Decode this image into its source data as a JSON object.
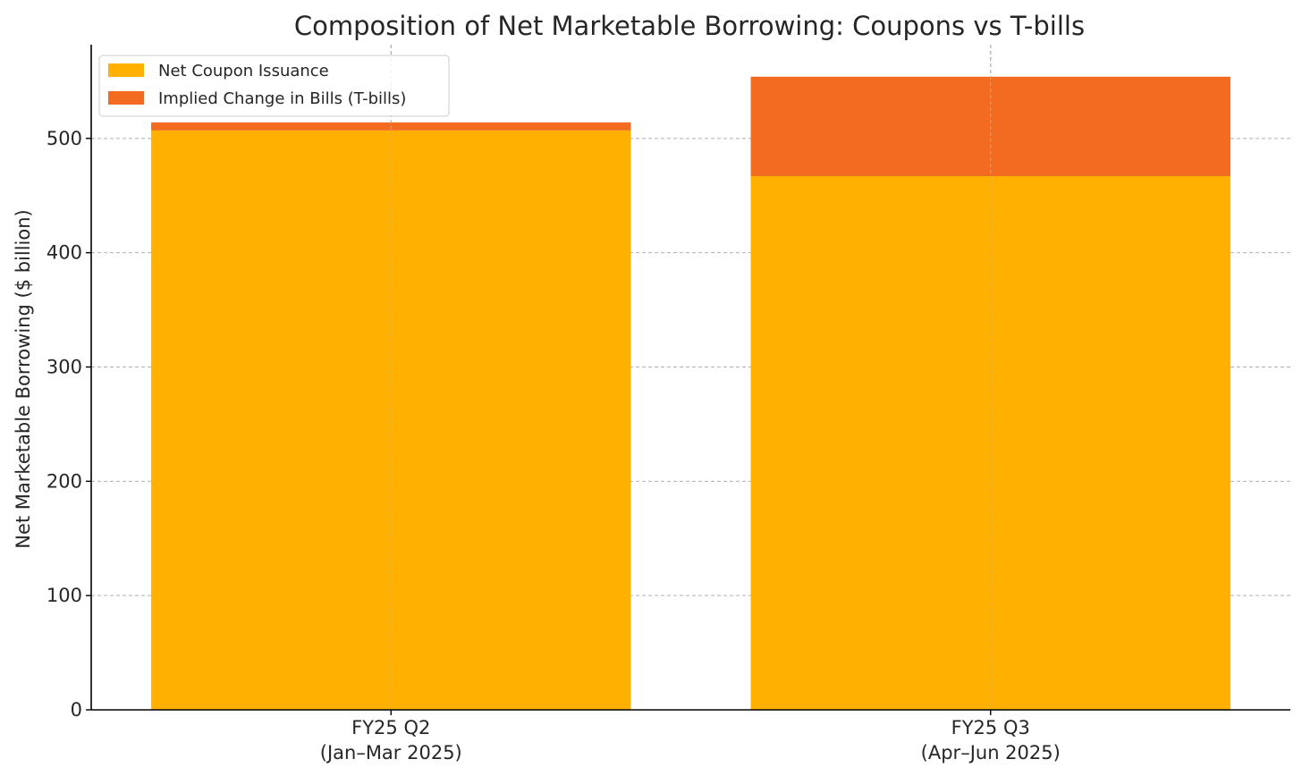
{
  "chart_data": {
    "type": "bar",
    "stacked": true,
    "title": "Composition of Net Marketable Borrowing: Coupons vs T-bills",
    "xlabel": "",
    "ylabel": "Net Marketable Borrowing ($ billion)",
    "ylim": [
      0,
      582
    ],
    "yticks": [
      0,
      100,
      200,
      300,
      400,
      500
    ],
    "categories": [
      [
        "FY25 Q2",
        "(Jan–Mar 2025)"
      ],
      [
        "FY25 Q3",
        "(Apr–Jun 2025)"
      ]
    ],
    "series": [
      {
        "name": "Net Coupon Issuance",
        "color": "#FFB000",
        "values": [
          507,
          467
        ]
      },
      {
        "name": "Implied Change in Bills (T-bills)",
        "color": "#F26B21",
        "values": [
          7,
          87
        ]
      }
    ],
    "grid": true,
    "legend_position": "top-left"
  }
}
